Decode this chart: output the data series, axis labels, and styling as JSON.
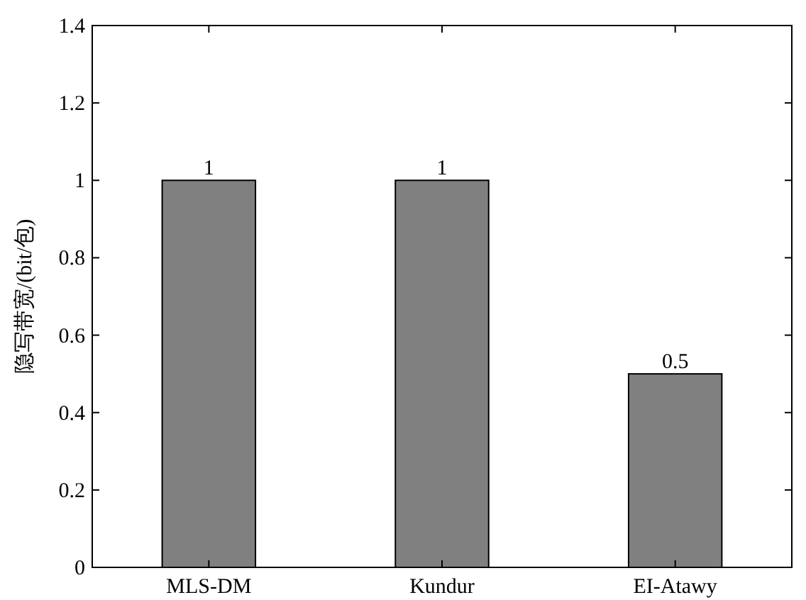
{
  "chart_data": {
    "type": "bar",
    "ylabel": "隐写带宽/(bit/包)",
    "categories": [
      "MLS-DM",
      "Kundur",
      "EI-Atawy"
    ],
    "values": [
      1,
      1,
      0.5
    ],
    "color": "#808080",
    "ylim": [
      0,
      1.4
    ],
    "yticks": [
      0,
      0.2,
      0.4,
      0.6,
      0.8,
      1,
      1.2,
      1.4
    ],
    "data_labels": true
  }
}
